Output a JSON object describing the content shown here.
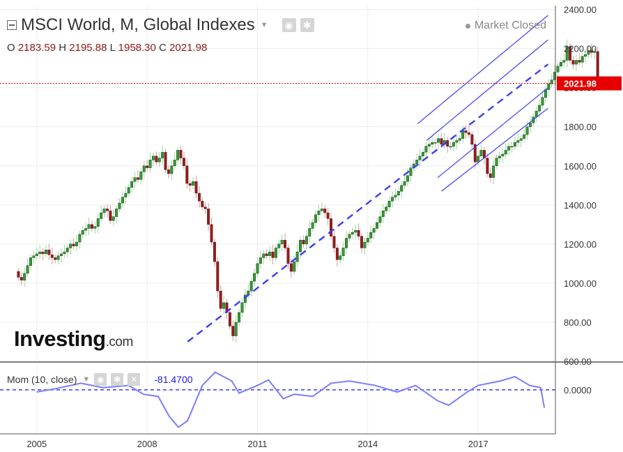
{
  "header": {
    "title": "MSCI World, M, Global Indexes",
    "ohlc": {
      "o_label": "O",
      "o": "2183.59",
      "h_label": "H",
      "h": "2195.88",
      "l_label": "L",
      "l": "1958.30",
      "c_label": "C",
      "c": "2021.98"
    },
    "market_status": "Market Closed"
  },
  "logo": {
    "main": "Investing",
    "suffix": ".com"
  },
  "indicator": {
    "label": "Mom (10, close)",
    "value": "-81.4700"
  },
  "colors": {
    "up": "#2e9e2e",
    "down": "#a01818",
    "channel": "#3b3bff",
    "momentum": "#7b7bff",
    "price_line": "#e60000"
  },
  "chart_data": {
    "type": "candlestick",
    "title": "MSCI World, M, Global Indexes",
    "price_axis": {
      "ticks": [
        600,
        800,
        1000,
        1200,
        1400,
        1600,
        1800,
        2000,
        2200,
        2400
      ],
      "tick_labels": [
        "600.00",
        "800.00",
        "1000.00",
        "1200.00",
        "1400.00",
        "1600.00",
        "1800.00",
        "2000.00",
        "2200.00",
        "2400.00"
      ],
      "range": [
        600,
        2420
      ]
    },
    "time_axis": {
      "ticks": [
        2005,
        2008,
        2011,
        2014,
        2017
      ],
      "tick_labels": [
        "2005",
        "2008",
        "2011",
        "2014",
        "2017"
      ],
      "range": [
        2004.0,
        2019.1
      ]
    },
    "last_price": {
      "value": 2021.98,
      "label": "2021.98"
    },
    "start": 2004.5,
    "closes": [
      1030,
      1015,
      1050,
      1090,
      1130,
      1140,
      1150,
      1160,
      1150,
      1170,
      1145,
      1130,
      1120,
      1140,
      1150,
      1160,
      1180,
      1200,
      1190,
      1210,
      1250,
      1270,
      1280,
      1300,
      1280,
      1290,
      1330,
      1360,
      1380,
      1370,
      1320,
      1340,
      1380,
      1410,
      1440,
      1460,
      1490,
      1520,
      1540,
      1530,
      1570,
      1600,
      1590,
      1630,
      1650,
      1620,
      1640,
      1670,
      1580,
      1560,
      1600,
      1630,
      1680,
      1640,
      1600,
      1510,
      1500,
      1520,
      1460,
      1420,
      1390,
      1380,
      1300,
      1210,
      1110,
      960,
      870,
      900,
      850,
      780,
      730,
      800,
      850,
      900,
      940,
      960,
      1010,
      1050,
      1100,
      1130,
      1150,
      1140,
      1160,
      1130,
      1180,
      1200,
      1220,
      1180,
      1100,
      1060,
      1110,
      1160,
      1220,
      1200,
      1240,
      1280,
      1310,
      1350,
      1370,
      1380,
      1360,
      1330,
      1240,
      1180,
      1120,
      1140,
      1180,
      1230,
      1250,
      1260,
      1270,
      1240,
      1180,
      1210,
      1230,
      1260,
      1280,
      1310,
      1340,
      1370,
      1390,
      1420,
      1440,
      1450,
      1470,
      1500,
      1520,
      1550,
      1590,
      1610,
      1630,
      1650,
      1670,
      1700,
      1710,
      1720,
      1720,
      1740,
      1710,
      1730,
      1700,
      1700,
      1720,
      1730,
      1740,
      1780,
      1770,
      1760,
      1710,
      1620,
      1650,
      1680,
      1640,
      1560,
      1540,
      1600,
      1640,
      1650,
      1660,
      1680,
      1700,
      1700,
      1720,
      1730,
      1740,
      1760,
      1800,
      1820,
      1850,
      1880,
      1910,
      1950,
      1990,
      2020,
      2040,
      2080,
      2110,
      2130,
      2140,
      2210,
      2140,
      2120,
      2140,
      2130,
      2160,
      2170,
      2190,
      2180,
      2185,
      2022
    ],
    "channel_lines": [
      {
        "name": "median",
        "style": "dashed",
        "from": [
          2009.1,
          700
        ],
        "to": [
          2018.9,
          2120
        ]
      },
      {
        "name": "upper-outer",
        "style": "solid",
        "from": [
          2015.35,
          1815
        ],
        "to": [
          2018.9,
          2370
        ]
      },
      {
        "name": "upper-inner",
        "style": "solid",
        "from": [
          2015.6,
          1730
        ],
        "to": [
          2018.9,
          2245
        ]
      },
      {
        "name": "lower-inner",
        "style": "solid",
        "from": [
          2015.9,
          1540
        ],
        "to": [
          2018.9,
          2000
        ]
      },
      {
        "name": "lower-outer",
        "style": "solid",
        "from": [
          2016.0,
          1470
        ],
        "to": [
          2018.9,
          1895
        ]
      }
    ],
    "momentum": {
      "label": "Mom (10, close)",
      "current": -81.47,
      "ticks": [
        0
      ],
      "tick_labels": [
        "0.0000"
      ],
      "range": [
        -200,
        120
      ],
      "series": [
        {
          "x": 2005.0,
          "y": -10
        },
        {
          "x": 2005.5,
          "y": 5
        },
        {
          "x": 2006.2,
          "y": 30
        },
        {
          "x": 2006.8,
          "y": 10
        },
        {
          "x": 2007.5,
          "y": 20
        },
        {
          "x": 2007.9,
          "y": -20
        },
        {
          "x": 2008.3,
          "y": -30
        },
        {
          "x": 2008.6,
          "y": -120
        },
        {
          "x": 2008.85,
          "y": -170
        },
        {
          "x": 2009.1,
          "y": -140
        },
        {
          "x": 2009.5,
          "y": 20
        },
        {
          "x": 2009.85,
          "y": 80
        },
        {
          "x": 2010.3,
          "y": 40
        },
        {
          "x": 2010.5,
          "y": -15
        },
        {
          "x": 2011.0,
          "y": 20
        },
        {
          "x": 2011.3,
          "y": 45
        },
        {
          "x": 2011.7,
          "y": -40
        },
        {
          "x": 2012.0,
          "y": -20
        },
        {
          "x": 2012.5,
          "y": -30
        },
        {
          "x": 2013.0,
          "y": 30
        },
        {
          "x": 2013.5,
          "y": 40
        },
        {
          "x": 2014.2,
          "y": 20
        },
        {
          "x": 2014.8,
          "y": -10
        },
        {
          "x": 2015.3,
          "y": 20
        },
        {
          "x": 2015.9,
          "y": -50
        },
        {
          "x": 2016.2,
          "y": -70
        },
        {
          "x": 2016.7,
          "y": -10
        },
        {
          "x": 2017.0,
          "y": 20
        },
        {
          "x": 2017.6,
          "y": 40
        },
        {
          "x": 2018.0,
          "y": 60
        },
        {
          "x": 2018.4,
          "y": 20
        },
        {
          "x": 2018.7,
          "y": 10
        },
        {
          "x": 2018.8,
          "y": -81.47
        }
      ]
    }
  }
}
